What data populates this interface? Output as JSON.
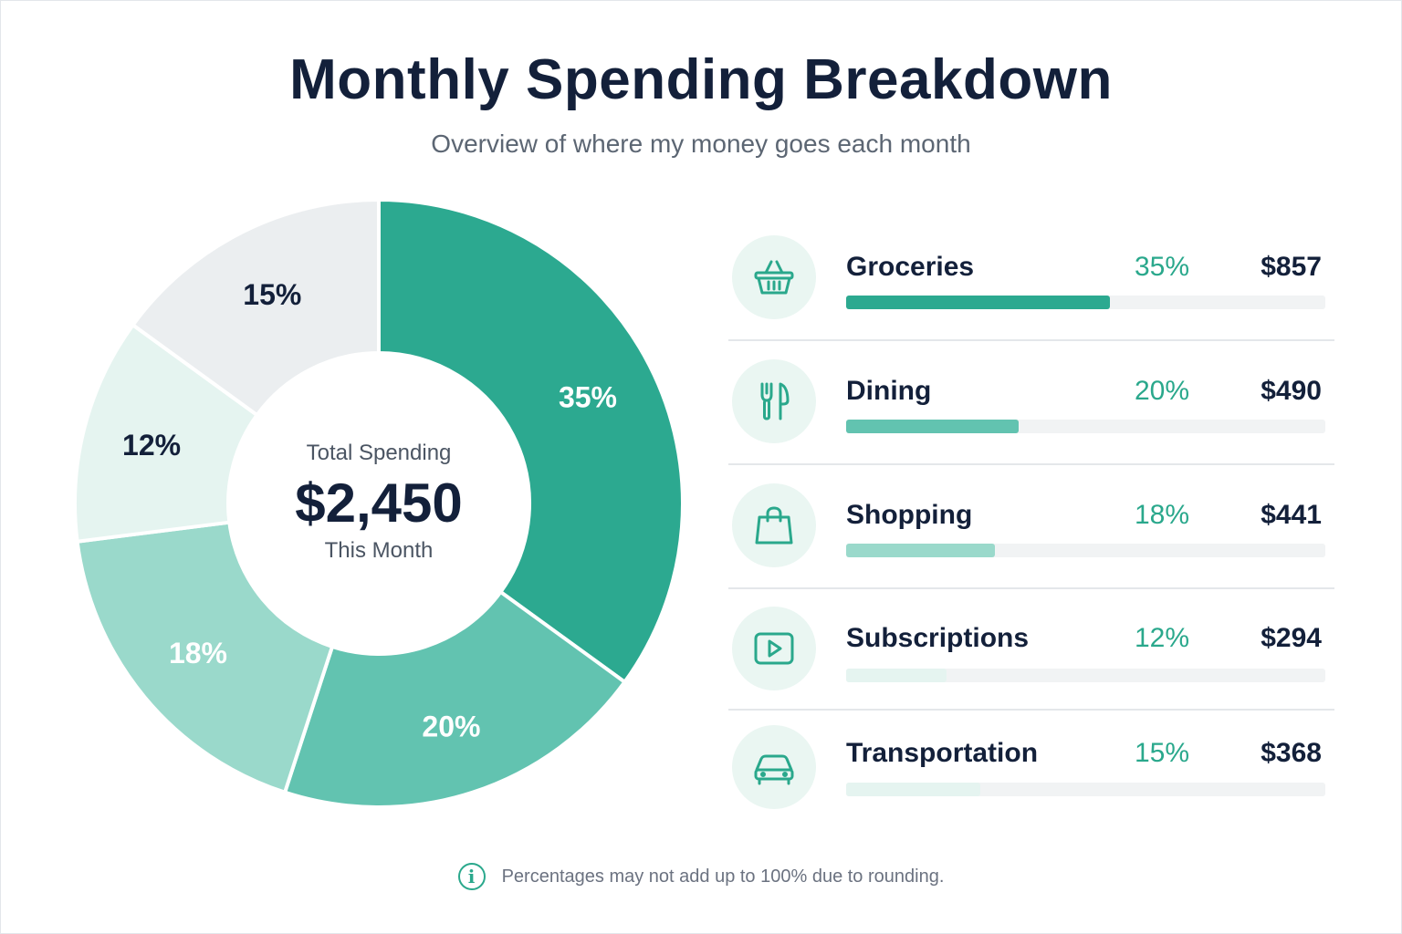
{
  "header": {
    "title": "Monthly Spending Breakdown",
    "subtitle": "Overview of where my money goes each month"
  },
  "center": {
    "label": "Total Spending",
    "value": "$2,450",
    "sub": "This Month"
  },
  "footnote": "Percentages may not add up to 100% due to rounding.",
  "icons": [
    "basket-icon",
    "fork-knife-icon",
    "shopping-bag-icon",
    "play-icon",
    "car-icon"
  ],
  "colors": {
    "groceries": "#2ca990",
    "dining": "#62c3b0",
    "shopping": "#9ad9cb",
    "subscriptions": "#e5f4f0",
    "transportation": "#ebeef0",
    "accent": "#2aa88c",
    "ink": "#13203a"
  },
  "chart_data": {
    "type": "pie",
    "donut": true,
    "categories": [
      "Groceries",
      "Dining",
      "Shopping",
      "Subscriptions",
      "Transportation"
    ],
    "values": [
      35,
      20,
      18,
      12,
      15
    ],
    "labels": [
      "35%",
      "20%",
      "18%",
      "12%",
      "15%"
    ],
    "amounts": [
      "$857",
      "$490",
      "$441",
      "$294",
      "$368"
    ],
    "bar_fill": [
      0.55,
      0.36,
      0.31,
      0.21,
      0.28
    ],
    "legend_placement": "right"
  }
}
